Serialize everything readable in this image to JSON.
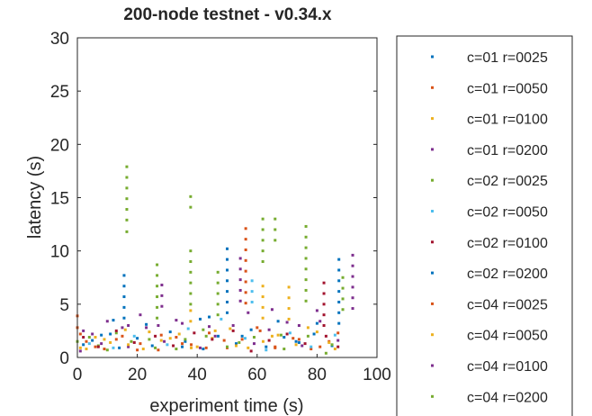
{
  "chart_data": {
    "type": "scatter",
    "title": "200-node testnet - v0.34.x",
    "xlabel": "experiment time (s)",
    "ylabel": "latency (s)",
    "xlim": [
      0,
      100
    ],
    "ylim": [
      0,
      30
    ],
    "xticks": [
      0,
      20,
      40,
      60,
      80,
      100
    ],
    "yticks": [
      0,
      5,
      10,
      15,
      20,
      25,
      30
    ],
    "grid": false,
    "legend_placement": "outside-right",
    "series": [
      {
        "name": "c=01 r=0025",
        "color": "#0072BD",
        "points": [
          [
            2,
            1.2
          ],
          [
            8,
            2.1
          ],
          [
            14,
            0.9
          ],
          [
            20,
            1.8
          ],
          [
            25,
            1.1
          ],
          [
            31,
            2.4
          ],
          [
            36,
            1.5
          ],
          [
            42,
            0.8
          ],
          [
            47,
            2.0
          ],
          [
            53,
            1.3
          ],
          [
            58,
            2.6
          ],
          [
            63,
            1.0
          ],
          [
            69,
            1.9
          ],
          [
            74,
            1.4
          ],
          [
            79,
            2.2
          ],
          [
            85,
            1.1
          ],
          [
            12,
            3.5
          ],
          [
            44,
            3.8
          ]
        ]
      },
      {
        "name": "c=01 r=0050",
        "color": "#D95319",
        "points": [
          [
            0,
            3.9
          ],
          [
            0,
            2.8
          ],
          [
            3,
            1.5
          ],
          [
            9,
            0.8
          ],
          [
            15,
            2.0
          ],
          [
            21,
            1.3
          ],
          [
            27,
            0.7
          ],
          [
            33,
            1.9
          ],
          [
            38,
            1.2
          ],
          [
            44,
            2.3
          ],
          [
            50,
            0.9
          ],
          [
            55,
            1.7
          ],
          [
            61,
            2.5
          ],
          [
            66,
            1.0
          ],
          [
            72,
            1.8
          ],
          [
            78,
            0.8
          ],
          [
            84,
            1.5
          ]
        ]
      },
      {
        "name": "c=01 r=0100",
        "color": "#EDB120",
        "points": [
          [
            1,
            0.9
          ],
          [
            6,
            1.9
          ],
          [
            11,
            1.4
          ],
          [
            16,
            2.6
          ],
          [
            22,
            0.8
          ],
          [
            28,
            1.6
          ],
          [
            34,
            2.2
          ],
          [
            40,
            1.0
          ],
          [
            37.8,
            4.4
          ],
          [
            37.8,
            3.4
          ],
          [
            45,
            1.8
          ],
          [
            51,
            2.7
          ],
          [
            57,
            0.9
          ],
          [
            62,
            1.5
          ],
          [
            67,
            2.1
          ],
          [
            73,
            1.2
          ],
          [
            80,
            2.4
          ],
          [
            86,
            0.8
          ]
        ]
      },
      {
        "name": "c=01 r=0200",
        "color": "#7E2F8E",
        "points": [
          [
            1,
            0.6
          ],
          [
            5,
            2.2
          ],
          [
            10,
            3.4
          ],
          [
            17,
            1.0
          ],
          [
            17,
            3.0
          ],
          [
            23,
            2.8
          ],
          [
            29,
            1.5
          ],
          [
            35,
            3.2
          ],
          [
            41,
            0.9
          ],
          [
            46,
            2.0
          ],
          [
            52,
            3.0
          ],
          [
            59,
            1.3
          ],
          [
            64,
            2.6
          ],
          [
            70,
            3.3
          ],
          [
            75,
            1.1
          ],
          [
            81,
            3.4
          ],
          [
            87,
            1.6
          ]
        ]
      },
      {
        "name": "c=02 r=0025",
        "color": "#77AC30",
        "points": [
          [
            16.5,
            17.9
          ],
          [
            16.5,
            16.9
          ],
          [
            16.5,
            15.9
          ],
          [
            16.5,
            14.9
          ],
          [
            16.5,
            13.9
          ],
          [
            16.5,
            12.9
          ],
          [
            16.5,
            11.8
          ],
          [
            26.6,
            8.7
          ],
          [
            26.6,
            7.7
          ],
          [
            26.6,
            6.7
          ],
          [
            26.6,
            5.7
          ],
          [
            26.6,
            4.7
          ],
          [
            26.6,
            3.7
          ],
          [
            37.8,
            15.1
          ],
          [
            37.8,
            14.1
          ],
          [
            37.8,
            10.0
          ],
          [
            37.8,
            9.0
          ],
          [
            37.8,
            8.0
          ],
          [
            37.8,
            7.0
          ],
          [
            37.8,
            6.0
          ],
          [
            37.8,
            5.0
          ],
          [
            46.9,
            8.0
          ],
          [
            46.9,
            7.0
          ],
          [
            46.9,
            6.0
          ],
          [
            46.9,
            5.0
          ],
          [
            46.9,
            4.0
          ],
          [
            61.9,
            13.0
          ],
          [
            61.9,
            12.0
          ],
          [
            61.9,
            11.0
          ],
          [
            61.9,
            10.0
          ],
          [
            61.9,
            9.0
          ],
          [
            66,
            13.0
          ],
          [
            66,
            12.0
          ],
          [
            66,
            11.0
          ],
          [
            76.3,
            12.3
          ],
          [
            76.3,
            11.3
          ],
          [
            76.3,
            10.3
          ],
          [
            76.3,
            9.3
          ],
          [
            76.3,
            8.3
          ],
          [
            76.3,
            7.3
          ],
          [
            76.3,
            6.3
          ],
          [
            76.3,
            5.3
          ],
          [
            88.6,
            7.5
          ],
          [
            88.6,
            6.5
          ],
          [
            88.6,
            5.5
          ],
          [
            88.6,
            4.5
          ],
          [
            0,
            1.5
          ],
          [
            7,
            1.1
          ],
          [
            13,
            2.3
          ],
          [
            24,
            1.7
          ],
          [
            33,
            0.8
          ],
          [
            43,
            2.0
          ],
          [
            54,
            1.4
          ],
          [
            68,
            2.1
          ]
        ]
      },
      {
        "name": "c=02 r=0050",
        "color": "#4DBEEE",
        "points": [
          [
            58.3,
            7.2
          ],
          [
            58.3,
            6.2
          ],
          [
            58.3,
            5.2
          ],
          [
            4,
            1.3
          ],
          [
            12,
            0.9
          ],
          [
            19,
            2.0
          ],
          [
            30,
            1.2
          ],
          [
            37,
            2.7
          ],
          [
            48,
            3.6
          ],
          [
            56,
            1.8
          ],
          [
            63,
            0.7
          ],
          [
            71,
            2.3
          ],
          [
            78,
            1.0
          ],
          [
            86,
            2.1
          ]
        ]
      },
      {
        "name": "c=02 r=0100",
        "color": "#A2142F",
        "points": [
          [
            82.3,
            7.0
          ],
          [
            82.3,
            6.0
          ],
          [
            82.3,
            5.0
          ],
          [
            82.3,
            4.0
          ],
          [
            82.3,
            3.0
          ],
          [
            2,
            1.9
          ],
          [
            7,
            1.0
          ],
          [
            13,
            2.5
          ],
          [
            19,
            1.4
          ],
          [
            26,
            2.0
          ],
          [
            32,
            1.1
          ],
          [
            39,
            2.3
          ],
          [
            45,
            1.7
          ],
          [
            52,
            2.5
          ],
          [
            58,
            0.6
          ],
          [
            64,
            1.6
          ],
          [
            70,
            2.2
          ],
          [
            76,
            1.3
          ],
          [
            83,
            2.0
          ],
          [
            87,
            1.0
          ]
        ]
      },
      {
        "name": "c=02 r=0200",
        "color": "#0072BD",
        "points": [
          [
            15.6,
            7.7
          ],
          [
            15.6,
            6.7
          ],
          [
            15.6,
            5.7
          ],
          [
            15.6,
            4.7
          ],
          [
            15.6,
            3.7
          ],
          [
            50,
            10.2
          ],
          [
            50,
            9.2
          ],
          [
            50,
            8.2
          ],
          [
            50,
            7.2
          ],
          [
            50,
            6.2
          ],
          [
            50,
            5.2
          ],
          [
            50,
            4.2
          ],
          [
            87.3,
            9.2
          ],
          [
            87.3,
            8.2
          ],
          [
            87.3,
            7.2
          ],
          [
            87.3,
            6.2
          ],
          [
            87.3,
            5.2
          ],
          [
            87.3,
            4.2
          ],
          [
            87.3,
            3.2
          ],
          [
            5,
            1.6
          ],
          [
            11,
            2.2
          ],
          [
            23,
            3.1
          ],
          [
            35,
            1.0
          ],
          [
            41,
            3.6
          ],
          [
            55,
            2.0
          ],
          [
            67,
            3.4
          ],
          [
            73,
            1.5
          ],
          [
            80,
            3.2
          ]
        ]
      },
      {
        "name": "c=04 r=0025",
        "color": "#D95319",
        "points": [
          [
            56.2,
            12.1
          ],
          [
            56.2,
            11.1
          ],
          [
            56.2,
            10.1
          ],
          [
            56.2,
            9.1
          ],
          [
            56.2,
            8.1
          ],
          [
            56.2,
            7.1
          ],
          [
            56.2,
            6.1
          ],
          [
            56.2,
            5.1
          ],
          [
            1,
            2.2
          ],
          [
            6,
            1.0
          ],
          [
            13,
            1.7
          ],
          [
            20,
            0.7
          ],
          [
            28,
            2.1
          ],
          [
            35,
            1.3
          ],
          [
            43,
            0.9
          ],
          [
            49,
            1.6
          ],
          [
            60,
            2.8
          ],
          [
            66,
            0.9
          ],
          [
            74,
            1.7
          ],
          [
            81,
            1.0
          ],
          [
            87,
            2.3
          ]
        ]
      },
      {
        "name": "c=04 r=0050",
        "color": "#EDB120",
        "points": [
          [
            61.9,
            6.7
          ],
          [
            61.9,
            5.7
          ],
          [
            61.9,
            4.7
          ],
          [
            61.9,
            3.7
          ],
          [
            70.6,
            6.6
          ],
          [
            70.6,
            5.6
          ],
          [
            70.6,
            4.6
          ],
          [
            70.6,
            3.6
          ],
          [
            3,
            0.8
          ],
          [
            9,
            1.7
          ],
          [
            17,
            1.2
          ],
          [
            24,
            2.4
          ],
          [
            31,
            1.8
          ],
          [
            38,
            0.9
          ],
          [
            46,
            2.5
          ],
          [
            53,
            1.1
          ],
          [
            65,
            2.0
          ],
          [
            77,
            2.8
          ],
          [
            84,
            1.4
          ]
        ]
      },
      {
        "name": "c=04 r=0100",
        "color": "#7E2F8E",
        "points": [
          [
            54.4,
            9.3
          ],
          [
            54.4,
            8.3
          ],
          [
            54.4,
            7.3
          ],
          [
            54.4,
            6.3
          ],
          [
            54.4,
            5.3
          ],
          [
            91.9,
            9.6
          ],
          [
            91.9,
            8.6
          ],
          [
            91.9,
            7.6
          ],
          [
            91.9,
            6.6
          ],
          [
            91.9,
            5.6
          ],
          [
            91.9,
            4.6
          ],
          [
            28.2,
            6.8
          ],
          [
            28.2,
            5.8
          ],
          [
            28.2,
            4.8
          ],
          [
            2,
            2.5
          ],
          [
            8,
            1.3
          ],
          [
            15,
            2.8
          ],
          [
            21,
            4.0
          ],
          [
            27,
            3.0
          ],
          [
            33,
            3.5
          ],
          [
            44,
            2.9
          ],
          [
            57,
            4.2
          ],
          [
            65,
            4.5
          ],
          [
            74,
            3.0
          ],
          [
            80,
            4.4
          ]
        ]
      },
      {
        "name": "c=04 r=0200",
        "color": "#77AC30",
        "points": [
          [
            4,
            1.9
          ],
          [
            10,
            0.7
          ],
          [
            18,
            1.5
          ],
          [
            26,
            0.9
          ],
          [
            36,
            1.7
          ],
          [
            42,
            2.6
          ],
          [
            50,
            1.0
          ],
          [
            59,
            1.9
          ],
          [
            69,
            0.8
          ],
          [
            77,
            2.0
          ],
          [
            85,
            1.2
          ],
          [
            83,
            0.4
          ]
        ]
      }
    ]
  }
}
